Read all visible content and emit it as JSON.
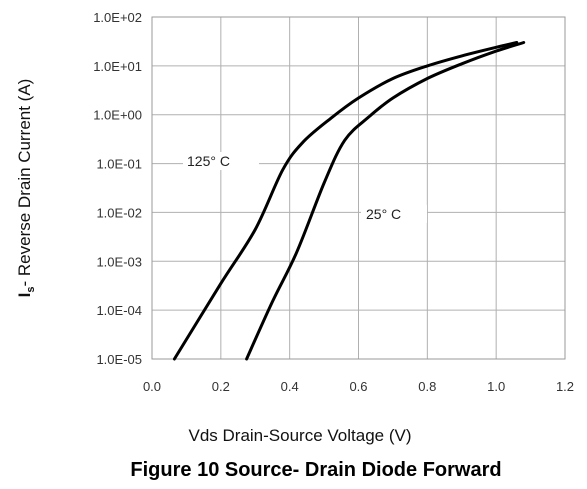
{
  "chart_data": {
    "type": "line",
    "title": "Figure 10 Source- Drain Diode Forward",
    "xlabel": "Vds Drain-Source Voltage (V)",
    "ylabel_main": "I",
    "ylabel_sub": "s",
    "ylabel_rest": "- Reverse Drain Current (A)",
    "xlim": [
      0,
      1.2
    ],
    "ylim": [
      1e-05,
      100
    ],
    "yscale": "log",
    "grid": true,
    "x_ticks": [
      "0.0",
      "0.2",
      "0.4",
      "0.6",
      "0.8",
      "1.0",
      "1.2"
    ],
    "y_ticks": [
      "1.0E-05",
      "1.0E-04",
      "1.0E-03",
      "1.0E-02",
      "1.0E-01",
      "1.0E+00",
      "1.0E+01",
      "1.0E+02"
    ],
    "series": [
      {
        "name": "125° C",
        "color": "#000000",
        "points": [
          [
            0.065,
            1e-05
          ],
          [
            0.2,
            0.00035
          ],
          [
            0.3,
            0.0045
          ],
          [
            0.38,
            0.075
          ],
          [
            0.44,
            0.28
          ],
          [
            0.52,
            0.85
          ],
          [
            0.6,
            2.2
          ],
          [
            0.7,
            5.5
          ],
          [
            0.8,
            10.0
          ],
          [
            0.9,
            16.0
          ],
          [
            1.0,
            24.0
          ],
          [
            1.06,
            30.0
          ]
        ]
      },
      {
        "name": "25° C",
        "color": "#000000",
        "points": [
          [
            0.275,
            1e-05
          ],
          [
            0.35,
            0.00015
          ],
          [
            0.42,
            0.0015
          ],
          [
            0.5,
            0.04
          ],
          [
            0.56,
            0.3
          ],
          [
            0.63,
            0.9
          ],
          [
            0.7,
            2.2
          ],
          [
            0.8,
            5.5
          ],
          [
            0.9,
            11.0
          ],
          [
            1.0,
            20.0
          ],
          [
            1.08,
            30.0
          ]
        ]
      }
    ]
  }
}
